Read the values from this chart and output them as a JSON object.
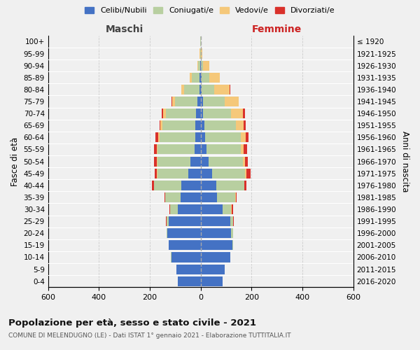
{
  "age_groups": [
    "0-4",
    "5-9",
    "10-14",
    "15-19",
    "20-24",
    "25-29",
    "30-34",
    "35-39",
    "40-44",
    "45-49",
    "50-54",
    "55-59",
    "60-64",
    "65-69",
    "70-74",
    "75-79",
    "80-84",
    "85-89",
    "90-94",
    "95-99",
    "100+"
  ],
  "birth_years": [
    "2016-2020",
    "2011-2015",
    "2006-2010",
    "2001-2005",
    "1996-2000",
    "1991-1995",
    "1986-1990",
    "1981-1985",
    "1976-1980",
    "1971-1975",
    "1966-1970",
    "1961-1965",
    "1956-1960",
    "1951-1955",
    "1946-1950",
    "1941-1945",
    "1936-1940",
    "1931-1935",
    "1926-1930",
    "1921-1925",
    "≤ 1920"
  ],
  "maschi": {
    "celibi": [
      90,
      95,
      115,
      125,
      130,
      125,
      90,
      80,
      75,
      50,
      40,
      25,
      22,
      20,
      18,
      12,
      5,
      4,
      1,
      0,
      0
    ],
    "coniugati": [
      0,
      0,
      2,
      2,
      5,
      10,
      30,
      60,
      110,
      120,
      130,
      145,
      140,
      130,
      120,
      90,
      60,
      30,
      8,
      2,
      1
    ],
    "vedovi": [
      0,
      0,
      0,
      0,
      0,
      0,
      0,
      0,
      0,
      2,
      2,
      3,
      5,
      8,
      10,
      10,
      10,
      8,
      5,
      2,
      0
    ],
    "divorziati": [
      0,
      0,
      0,
      0,
      0,
      2,
      2,
      2,
      8,
      10,
      12,
      10,
      10,
      5,
      5,
      2,
      0,
      0,
      0,
      0,
      0
    ]
  },
  "femmine": {
    "nubili": [
      85,
      95,
      115,
      125,
      120,
      115,
      85,
      65,
      60,
      45,
      30,
      22,
      18,
      14,
      10,
      8,
      4,
      4,
      1,
      0,
      0
    ],
    "coniugate": [
      0,
      0,
      2,
      2,
      8,
      12,
      35,
      70,
      110,
      130,
      135,
      135,
      140,
      125,
      110,
      85,
      50,
      30,
      8,
      2,
      0
    ],
    "vedove": [
      0,
      0,
      0,
      0,
      0,
      0,
      2,
      2,
      2,
      5,
      8,
      12,
      18,
      30,
      45,
      55,
      60,
      40,
      25,
      5,
      1
    ],
    "divorziate": [
      0,
      0,
      0,
      0,
      0,
      2,
      5,
      5,
      8,
      15,
      12,
      12,
      12,
      8,
      8,
      2,
      2,
      0,
      0,
      0,
      0
    ]
  },
  "colors": {
    "celibi": "#4472c4",
    "coniugati": "#b8cfa0",
    "vedovi": "#f5c87a",
    "divorziati": "#d9312b"
  },
  "title": "Popolazione per età, sesso e stato civile - 2021",
  "subtitle": "COMUNE DI MELENDUGNO (LE) - Dati ISTAT 1° gennaio 2021 - Elaborazione TUTTITALIA.IT",
  "xlabel_left": "Maschi",
  "xlabel_right": "Femmine",
  "ylabel_left": "Fasce di età",
  "ylabel_right": "Anni di nascita",
  "xlim": 600,
  "background_color": "#f0f0f0",
  "legend_labels": [
    "Celibi/Nubili",
    "Coniugati/e",
    "Vedovi/e",
    "Divorziati/e"
  ]
}
